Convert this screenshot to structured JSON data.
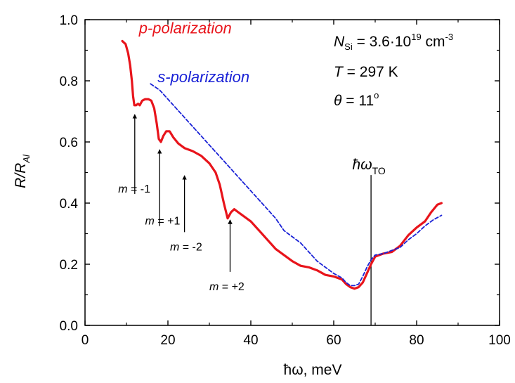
{
  "chart_data": {
    "type": "line",
    "xlabel": "ħω, meV",
    "ylabel": "R/R_Al",
    "xlim": [
      0,
      100
    ],
    "ylim": [
      0.0,
      1.0
    ],
    "grid": false,
    "x_ticks": [
      0,
      20,
      40,
      60,
      80,
      100
    ],
    "y_ticks": [
      0.0,
      0.2,
      0.4,
      0.6,
      0.8,
      1.0
    ],
    "x_tick_labels": [
      "0",
      "20",
      "40",
      "60",
      "80",
      "100"
    ],
    "y_tick_labels": [
      "0.0",
      "0.2",
      "0.4",
      "0.6",
      "0.8",
      "1.0"
    ],
    "series": [
      {
        "name": "p-polarization",
        "color": "#e8141b",
        "style": "solid",
        "points": [
          [
            9.0,
            0.93
          ],
          [
            9.8,
            0.92
          ],
          [
            10.4,
            0.89
          ],
          [
            10.9,
            0.85
          ],
          [
            11.3,
            0.8
          ],
          [
            11.6,
            0.75
          ],
          [
            11.9,
            0.72
          ],
          [
            12.3,
            0.72
          ],
          [
            12.8,
            0.725
          ],
          [
            13.2,
            0.72
          ],
          [
            13.8,
            0.735
          ],
          [
            14.5,
            0.74
          ],
          [
            15.3,
            0.74
          ],
          [
            16.0,
            0.735
          ],
          [
            16.7,
            0.71
          ],
          [
            17.3,
            0.66
          ],
          [
            17.8,
            0.61
          ],
          [
            18.3,
            0.6
          ],
          [
            18.9,
            0.62
          ],
          [
            19.6,
            0.635
          ],
          [
            20.4,
            0.635
          ],
          [
            21.3,
            0.615
          ],
          [
            22.5,
            0.595
          ],
          [
            24.0,
            0.58
          ],
          [
            26.0,
            0.57
          ],
          [
            28.0,
            0.555
          ],
          [
            30.0,
            0.53
          ],
          [
            31.5,
            0.5
          ],
          [
            32.5,
            0.46
          ],
          [
            33.5,
            0.4
          ],
          [
            34.4,
            0.35
          ],
          [
            35.2,
            0.37
          ],
          [
            36.0,
            0.38
          ],
          [
            37.0,
            0.37
          ],
          [
            38.0,
            0.36
          ],
          [
            40.0,
            0.34
          ],
          [
            42.0,
            0.31
          ],
          [
            44.0,
            0.28
          ],
          [
            46.0,
            0.25
          ],
          [
            48.0,
            0.23
          ],
          [
            50.0,
            0.21
          ],
          [
            52.0,
            0.195
          ],
          [
            54.0,
            0.19
          ],
          [
            56.0,
            0.18
          ],
          [
            58.0,
            0.165
          ],
          [
            60.0,
            0.16
          ],
          [
            62.0,
            0.15
          ],
          [
            63.0,
            0.135
          ],
          [
            64.0,
            0.125
          ],
          [
            65.0,
            0.12
          ],
          [
            66.0,
            0.125
          ],
          [
            67.0,
            0.14
          ],
          [
            68.0,
            0.17
          ],
          [
            69.0,
            0.2
          ],
          [
            70.0,
            0.225
          ],
          [
            72.0,
            0.235
          ],
          [
            74.0,
            0.24
          ],
          [
            76.0,
            0.26
          ],
          [
            78.0,
            0.295
          ],
          [
            80.0,
            0.32
          ],
          [
            82.0,
            0.34
          ],
          [
            83.5,
            0.37
          ],
          [
            85.0,
            0.395
          ],
          [
            86.0,
            0.4
          ]
        ]
      },
      {
        "name": "s-polarization",
        "color": "#1a22d6",
        "style": "dashed",
        "points": [
          [
            15.8,
            0.79
          ],
          [
            18.0,
            0.77
          ],
          [
            20.0,
            0.74
          ],
          [
            22.0,
            0.71
          ],
          [
            24.0,
            0.68
          ],
          [
            26.0,
            0.65
          ],
          [
            28.0,
            0.62
          ],
          [
            30.0,
            0.59
          ],
          [
            32.0,
            0.56
          ],
          [
            34.0,
            0.53
          ],
          [
            36.0,
            0.5
          ],
          [
            38.0,
            0.47
          ],
          [
            40.0,
            0.44
          ],
          [
            42.0,
            0.41
          ],
          [
            44.0,
            0.38
          ],
          [
            46.0,
            0.35
          ],
          [
            48.0,
            0.31
          ],
          [
            50.0,
            0.29
          ],
          [
            52.0,
            0.27
          ],
          [
            54.0,
            0.24
          ],
          [
            56.0,
            0.21
          ],
          [
            58.0,
            0.19
          ],
          [
            60.0,
            0.17
          ],
          [
            62.0,
            0.155
          ],
          [
            63.0,
            0.14
          ],
          [
            64.0,
            0.13
          ],
          [
            65.0,
            0.13
          ],
          [
            66.0,
            0.135
          ],
          [
            67.0,
            0.16
          ],
          [
            68.0,
            0.19
          ],
          [
            69.0,
            0.215
          ],
          [
            70.0,
            0.23
          ],
          [
            72.0,
            0.235
          ],
          [
            74.0,
            0.245
          ],
          [
            76.0,
            0.255
          ],
          [
            78.0,
            0.28
          ],
          [
            80.0,
            0.3
          ],
          [
            82.0,
            0.325
          ],
          [
            84.0,
            0.345
          ],
          [
            86.0,
            0.36
          ]
        ]
      }
    ],
    "series_labels": [
      {
        "text": "p-polarization",
        "x": 13.0,
        "y": 0.955,
        "color": "#e8141b"
      },
      {
        "text": "s-polarization",
        "x": 17.5,
        "y": 0.795,
        "color": "#1a22d6"
      }
    ],
    "annotations": [
      {
        "label_prefix": "m",
        "label_value": " = -1",
        "arrow_x": 12.0,
        "arrow_from_y": 0.43,
        "arrow_to_y": 0.69,
        "text_x": 8.0,
        "text_y": 0.435
      },
      {
        "label_prefix": "m",
        "label_value": " = +1",
        "arrow_x": 18.0,
        "arrow_from_y": 0.325,
        "arrow_to_y": 0.575,
        "text_x": 14.5,
        "text_y": 0.33
      },
      {
        "label_prefix": "m",
        "label_value": " = -2",
        "arrow_x": 24.0,
        "arrow_from_y": 0.305,
        "arrow_to_y": 0.49,
        "text_x": 20.5,
        "text_y": 0.245
      },
      {
        "label_prefix": "m",
        "label_value": " = +2",
        "arrow_x": 35.0,
        "arrow_from_y": 0.175,
        "arrow_to_y": 0.345,
        "text_x": 30.0,
        "text_y": 0.115
      }
    ],
    "reference_line": {
      "label": "ħω",
      "subscript": "TO",
      "x": 69.0,
      "y_top": 0.51,
      "y_bottom": 0.0,
      "label_x": 64.5,
      "label_y": 0.51
    },
    "info_box": {
      "n_label": "N",
      "n_sub": "Si",
      "n_value": " = 3.6·10",
      "n_exp": "19",
      "n_unit": " cm",
      "n_unit_exp": "-3",
      "t_label": "T",
      "t_value": " = 297 K",
      "theta_label": "θ",
      "theta_value": " = 11",
      "theta_deg": "o"
    }
  },
  "axis_labels": {
    "x_main": "ħω, meV",
    "y_main": "R/R",
    "y_sub": "Al"
  }
}
